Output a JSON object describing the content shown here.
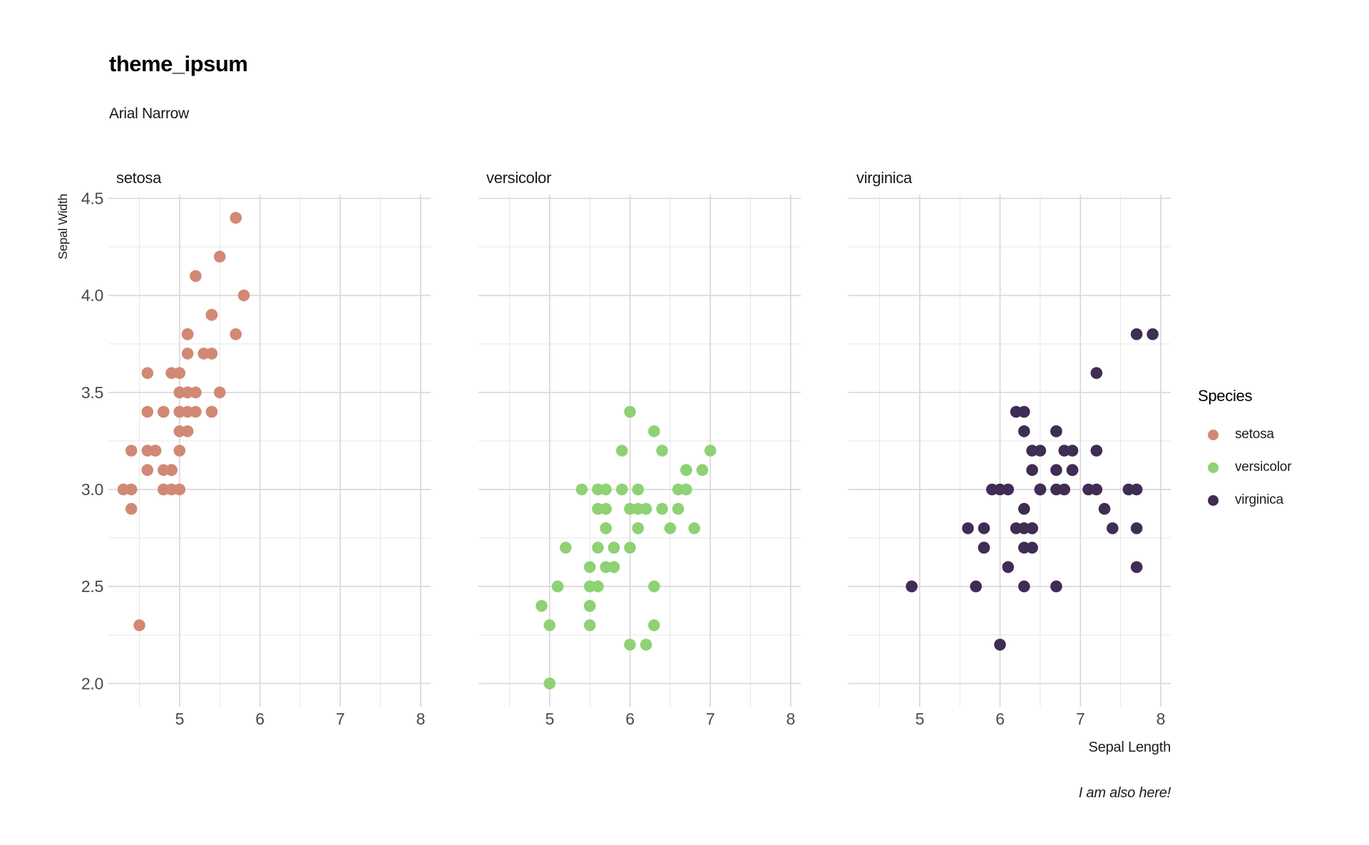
{
  "chart": {
    "title": "theme_ipsum",
    "subtitle": "Arial Narrow",
    "caption": "I am also here!",
    "x_axis_title": "Sepal Length",
    "y_axis_title": "Sepal Width"
  },
  "legend": {
    "title": "Species",
    "items": [
      {
        "label": "setosa",
        "color": "#d18975"
      },
      {
        "label": "versicolor",
        "color": "#8fd175"
      },
      {
        "label": "virginica",
        "color": "#3f2d54"
      }
    ]
  },
  "style": {
    "background": "#ffffff",
    "grid_major": "#d9d9d9",
    "grid_minor": "#e7e7e7",
    "tick_label_color": "#4a4a4a",
    "facet_label_color": "#1a1a1a"
  },
  "chart_data": {
    "type": "scatter",
    "title": "theme_ipsum",
    "subtitle": "Arial Narrow",
    "caption": "I am also here!",
    "xlabel": "Sepal Length",
    "ylabel": "Sepal Width",
    "facets": [
      "setosa",
      "versicolor",
      "virginica"
    ],
    "legend_position": "right",
    "grid": true,
    "xlim": [
      4.114,
      8.125
    ],
    "ylim": [
      1.88,
      4.52
    ],
    "x_ticks_major": [
      5,
      6,
      7,
      8
    ],
    "x_ticks_minor": [
      4.5,
      5.5,
      6.5,
      7.5
    ],
    "y_ticks_major": [
      2.0,
      2.5,
      3.0,
      3.5,
      4.0,
      4.5
    ],
    "y_ticks_minor": [
      2.25,
      2.75,
      3.25,
      3.75,
      4.25
    ],
    "series": [
      {
        "name": "setosa",
        "color": "#d18975",
        "points": [
          [
            5.1,
            3.5
          ],
          [
            4.9,
            3.0
          ],
          [
            4.7,
            3.2
          ],
          [
            4.6,
            3.1
          ],
          [
            5.0,
            3.6
          ],
          [
            5.4,
            3.9
          ],
          [
            4.6,
            3.4
          ],
          [
            5.0,
            3.4
          ],
          [
            4.4,
            2.9
          ],
          [
            4.9,
            3.1
          ],
          [
            5.4,
            3.7
          ],
          [
            4.8,
            3.4
          ],
          [
            4.8,
            3.0
          ],
          [
            4.3,
            3.0
          ],
          [
            5.8,
            4.0
          ],
          [
            5.7,
            4.4
          ],
          [
            5.4,
            3.9
          ],
          [
            5.1,
            3.5
          ],
          [
            5.7,
            3.8
          ],
          [
            5.1,
            3.8
          ],
          [
            5.4,
            3.4
          ],
          [
            5.1,
            3.7
          ],
          [
            4.6,
            3.6
          ],
          [
            5.1,
            3.3
          ],
          [
            4.8,
            3.4
          ],
          [
            5.0,
            3.0
          ],
          [
            5.0,
            3.4
          ],
          [
            5.2,
            3.5
          ],
          [
            5.2,
            3.4
          ],
          [
            4.7,
            3.2
          ],
          [
            4.8,
            3.1
          ],
          [
            5.4,
            3.4
          ],
          [
            5.2,
            4.1
          ],
          [
            5.5,
            4.2
          ],
          [
            4.9,
            3.1
          ],
          [
            5.0,
            3.2
          ],
          [
            5.5,
            3.5
          ],
          [
            4.9,
            3.6
          ],
          [
            4.4,
            3.0
          ],
          [
            5.1,
            3.4
          ],
          [
            5.0,
            3.5
          ],
          [
            4.5,
            2.3
          ],
          [
            4.4,
            3.2
          ],
          [
            5.0,
            3.5
          ],
          [
            5.1,
            3.8
          ],
          [
            4.8,
            3.0
          ],
          [
            5.1,
            3.8
          ],
          [
            4.6,
            3.2
          ],
          [
            5.3,
            3.7
          ],
          [
            5.0,
            3.3
          ]
        ]
      },
      {
        "name": "versicolor",
        "color": "#8fd175",
        "points": [
          [
            7.0,
            3.2
          ],
          [
            6.4,
            3.2
          ],
          [
            6.9,
            3.1
          ],
          [
            5.5,
            2.3
          ],
          [
            6.5,
            2.8
          ],
          [
            5.7,
            2.8
          ],
          [
            6.3,
            3.3
          ],
          [
            4.9,
            2.4
          ],
          [
            6.6,
            2.9
          ],
          [
            5.2,
            2.7
          ],
          [
            5.0,
            2.0
          ],
          [
            5.9,
            3.0
          ],
          [
            6.0,
            2.2
          ],
          [
            6.1,
            2.9
          ],
          [
            5.6,
            2.9
          ],
          [
            6.7,
            3.1
          ],
          [
            5.6,
            3.0
          ],
          [
            5.8,
            2.7
          ],
          [
            6.2,
            2.2
          ],
          [
            5.6,
            2.5
          ],
          [
            5.9,
            3.2
          ],
          [
            6.1,
            2.8
          ],
          [
            6.3,
            2.5
          ],
          [
            6.1,
            2.8
          ],
          [
            6.4,
            2.9
          ],
          [
            6.6,
            3.0
          ],
          [
            6.8,
            2.8
          ],
          [
            6.7,
            3.0
          ],
          [
            6.0,
            2.9
          ],
          [
            5.7,
            2.6
          ],
          [
            5.5,
            2.4
          ],
          [
            5.5,
            2.4
          ],
          [
            5.8,
            2.7
          ],
          [
            6.0,
            2.7
          ],
          [
            5.4,
            3.0
          ],
          [
            6.0,
            3.4
          ],
          [
            6.7,
            3.1
          ],
          [
            6.3,
            2.3
          ],
          [
            5.6,
            3.0
          ],
          [
            5.5,
            2.5
          ],
          [
            5.5,
            2.6
          ],
          [
            6.1,
            3.0
          ],
          [
            5.8,
            2.6
          ],
          [
            5.0,
            2.3
          ],
          [
            5.6,
            2.7
          ],
          [
            5.7,
            3.0
          ],
          [
            5.7,
            2.9
          ],
          [
            6.2,
            2.9
          ],
          [
            5.1,
            2.5
          ],
          [
            5.7,
            2.8
          ]
        ]
      },
      {
        "name": "virginica",
        "color": "#3f2d54",
        "points": [
          [
            6.3,
            3.3
          ],
          [
            5.8,
            2.7
          ],
          [
            7.1,
            3.0
          ],
          [
            6.3,
            2.9
          ],
          [
            6.5,
            3.0
          ],
          [
            7.6,
            3.0
          ],
          [
            4.9,
            2.5
          ],
          [
            7.3,
            2.9
          ],
          [
            6.7,
            2.5
          ],
          [
            7.2,
            3.6
          ],
          [
            6.5,
            3.2
          ],
          [
            6.4,
            2.7
          ],
          [
            6.8,
            3.0
          ],
          [
            5.7,
            2.5
          ],
          [
            5.8,
            2.8
          ],
          [
            6.4,
            3.2
          ],
          [
            6.5,
            3.0
          ],
          [
            7.7,
            3.8
          ],
          [
            7.7,
            2.6
          ],
          [
            6.0,
            2.2
          ],
          [
            6.9,
            3.2
          ],
          [
            5.6,
            2.8
          ],
          [
            7.7,
            2.8
          ],
          [
            6.3,
            2.7
          ],
          [
            6.7,
            3.3
          ],
          [
            7.2,
            3.2
          ],
          [
            6.2,
            2.8
          ],
          [
            6.1,
            3.0
          ],
          [
            6.4,
            2.8
          ],
          [
            7.2,
            3.0
          ],
          [
            7.4,
            2.8
          ],
          [
            7.9,
            3.8
          ],
          [
            6.4,
            2.8
          ],
          [
            6.3,
            2.8
          ],
          [
            6.1,
            2.6
          ],
          [
            7.7,
            3.0
          ],
          [
            6.3,
            3.4
          ],
          [
            6.4,
            3.1
          ],
          [
            6.0,
            3.0
          ],
          [
            6.9,
            3.1
          ],
          [
            6.7,
            3.1
          ],
          [
            6.9,
            3.1
          ],
          [
            5.8,
            2.7
          ],
          [
            6.8,
            3.2
          ],
          [
            6.7,
            3.3
          ],
          [
            6.7,
            3.0
          ],
          [
            6.3,
            2.5
          ],
          [
            6.5,
            3.0
          ],
          [
            6.2,
            3.4
          ],
          [
            5.9,
            3.0
          ]
        ]
      }
    ]
  }
}
